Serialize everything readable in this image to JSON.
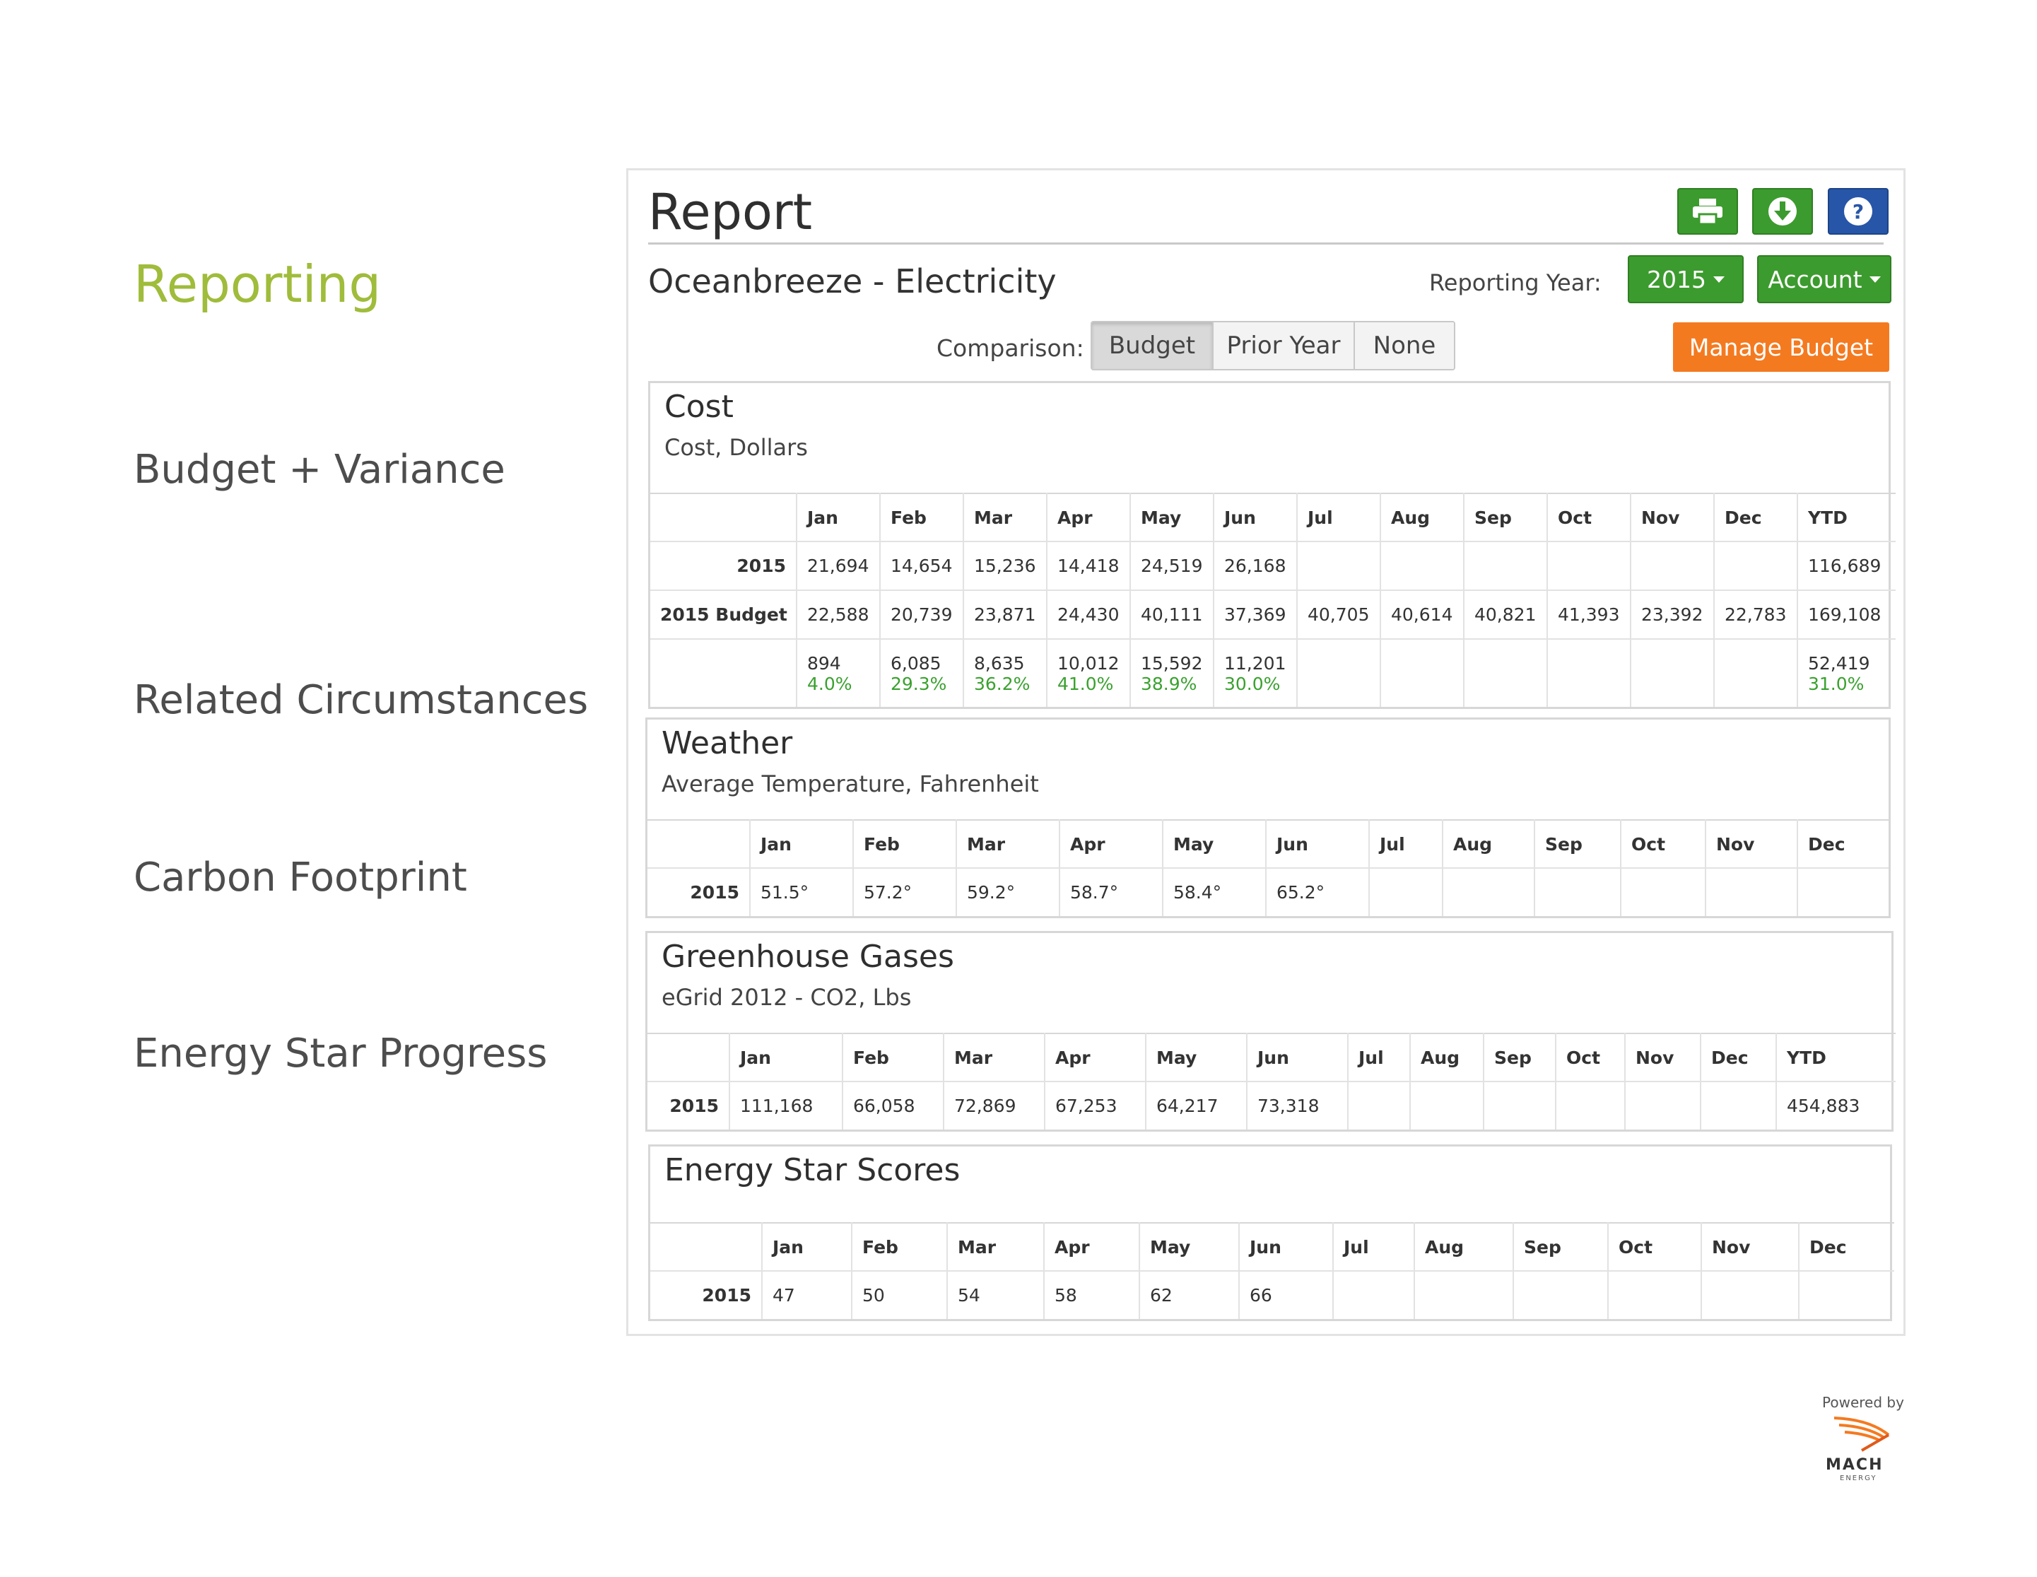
{
  "sidebar": {
    "items": [
      "Reporting",
      "Budget + Variance",
      "Related Circumstances",
      "Carbon Footprint",
      "Energy Star Progress"
    ]
  },
  "report": {
    "title": "Report",
    "subtitle": "Oceanbreeze - Electricity",
    "reporting_year_label": "Reporting Year:",
    "year_value": "2015",
    "account_label": "Account",
    "comparison_label": "Comparison:",
    "comparison_options": [
      "Budget",
      "Prior Year",
      "None"
    ],
    "comparison_selected": "Budget",
    "manage_budget_label": "Manage Budget",
    "icons": [
      "print-icon",
      "download-icon",
      "help-icon"
    ]
  },
  "sections": {
    "cost": {
      "title": "Cost",
      "subtitle": "Cost, Dollars",
      "headers": [
        "",
        "Jan",
        "Feb",
        "Mar",
        "Apr",
        "May",
        "Jun",
        "Jul",
        "Aug",
        "Sep",
        "Oct",
        "Nov",
        "Dec",
        "YTD"
      ],
      "rows": [
        {
          "label": "2015",
          "values": [
            "21,694",
            "14,654",
            "15,236",
            "14,418",
            "24,519",
            "26,168",
            "",
            "",
            "",
            "",
            "",
            "",
            "116,689"
          ]
        },
        {
          "label": "2015 Budget",
          "values": [
            "22,588",
            "20,739",
            "23,871",
            "24,430",
            "40,111",
            "37,369",
            "40,705",
            "40,614",
            "40,821",
            "41,393",
            "23,392",
            "22,783",
            "169,108"
          ]
        }
      ],
      "variance": {
        "values": [
          "894",
          "6,085",
          "8,635",
          "10,012",
          "15,592",
          "11,201",
          "",
          "",
          "",
          "",
          "",
          "",
          "52,419"
        ],
        "percents": [
          "4.0%",
          "29.3%",
          "36.2%",
          "41.0%",
          "38.9%",
          "30.0%",
          "",
          "",
          "",
          "",
          "",
          "",
          "31.0%"
        ]
      }
    },
    "weather": {
      "title": "Weather",
      "subtitle": "Average Temperature, Fahrenheit",
      "headers": [
        "",
        "Jan",
        "Feb",
        "Mar",
        "Apr",
        "May",
        "Jun",
        "Jul",
        "Aug",
        "Sep",
        "Oct",
        "Nov",
        "Dec"
      ],
      "rows": [
        {
          "label": "2015",
          "values": [
            "51.5°",
            "57.2°",
            "59.2°",
            "58.7°",
            "58.4°",
            "65.2°",
            "",
            "",
            "",
            "",
            "",
            ""
          ]
        }
      ]
    },
    "ghg": {
      "title": "Greenhouse Gases",
      "subtitle": "eGrid 2012 - CO2, Lbs",
      "headers": [
        "",
        "Jan",
        "Feb",
        "Mar",
        "Apr",
        "May",
        "Jun",
        "Jul",
        "Aug",
        "Sep",
        "Oct",
        "Nov",
        "Dec",
        "YTD"
      ],
      "rows": [
        {
          "label": "2015",
          "values": [
            "111,168",
            "66,058",
            "72,869",
            "67,253",
            "64,217",
            "73,318",
            "",
            "",
            "",
            "",
            "",
            "",
            "454,883"
          ]
        }
      ]
    },
    "energystar": {
      "title": "Energy Star Scores",
      "headers": [
        "",
        "Jan",
        "Feb",
        "Mar",
        "Apr",
        "May",
        "Jun",
        "Jul",
        "Aug",
        "Sep",
        "Oct",
        "Nov",
        "Dec"
      ],
      "rows": [
        {
          "label": "2015",
          "values": [
            "47",
            "50",
            "54",
            "58",
            "62",
            "66",
            "",
            "",
            "",
            "",
            "",
            ""
          ]
        }
      ]
    }
  },
  "branding": {
    "powered_by": "Powered by",
    "logo_text": "MACH",
    "logo_subtext": "ENERGY",
    "accent_green": "#9fbc3b",
    "button_green": "#3c9b2e",
    "button_blue": "#2756a8",
    "button_orange": "#f47a20",
    "positive_green": "#3aa12f"
  }
}
